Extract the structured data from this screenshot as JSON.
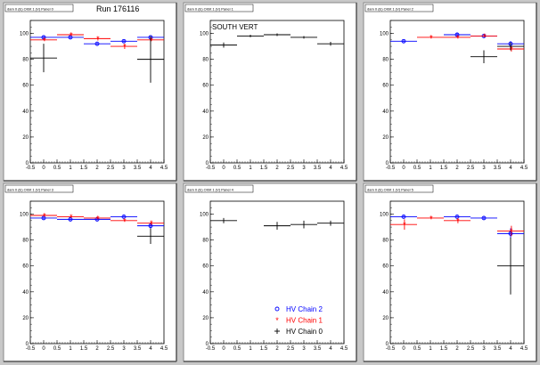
{
  "run_label": "Run 176116",
  "colors": {
    "chain2": "#0000ff",
    "chain1": "#ff0000",
    "chain0": "#000000"
  },
  "legend": [
    {
      "label": "HV Chain 2",
      "marker": "open-circle",
      "series": "chain2"
    },
    {
      "label": "HV Chain 1",
      "marker": "star",
      "series": "chain1"
    },
    {
      "label": "HV Chain 0",
      "marker": "cross",
      "series": "chain0"
    }
  ],
  "chart_data": [
    {
      "type": "scatter",
      "pad_title": "dam 0 (E) Orbit 1 (V) Panel 0",
      "label": "",
      "xlim": [
        -0.5,
        4.5
      ],
      "ylim": [
        0,
        110
      ],
      "xticks": [
        "-0.5",
        "0",
        "0.5",
        "1",
        "1.5",
        "2",
        "2.5",
        "3",
        "3.5",
        "4",
        "4.5"
      ],
      "yticks": [
        "0",
        "20",
        "40",
        "60",
        "80",
        "100"
      ],
      "series": [
        {
          "key": "chain0",
          "points": [
            {
              "x": 0,
              "y": 81,
              "err": 11
            },
            {
              "x": 4,
              "y": 80,
              "err": 18
            }
          ]
        },
        {
          "key": "chain1",
          "points": [
            {
              "x": 0,
              "y": 95,
              "err": 1
            },
            {
              "x": 1,
              "y": 99,
              "err": 1
            },
            {
              "x": 2,
              "y": 96,
              "err": 1.5
            },
            {
              "x": 3,
              "y": 90,
              "err": 2
            },
            {
              "x": 4,
              "y": 95,
              "err": 1
            }
          ]
        },
        {
          "key": "chain2",
          "points": [
            {
              "x": 0,
              "y": 97,
              "err": 1
            },
            {
              "x": 1,
              "y": 97,
              "err": 1
            },
            {
              "x": 2,
              "y": 92,
              "err": 1
            },
            {
              "x": 3,
              "y": 94,
              "err": 1
            },
            {
              "x": 4,
              "y": 97,
              "err": 1
            }
          ]
        }
      ]
    },
    {
      "type": "scatter",
      "pad_title": "dam 0 (E) Orbit 1 (V) Panel 1",
      "label": "SOUTH VERT",
      "xlim": [
        -0.5,
        4.5
      ],
      "ylim": [
        0,
        110
      ],
      "xticks": [
        "-0.5",
        "0",
        "0.5",
        "1",
        "1.5",
        "2",
        "2.5",
        "3",
        "3.5",
        "4",
        "4.5"
      ],
      "yticks": [
        "0",
        "20",
        "40",
        "60",
        "80",
        "100"
      ],
      "series": [
        {
          "key": "chain0",
          "points": [
            {
              "x": 0,
              "y": 91,
              "err": 2
            },
            {
              "x": 1,
              "y": 98,
              "err": 1
            },
            {
              "x": 2,
              "y": 99,
              "err": 1
            },
            {
              "x": 3,
              "y": 97,
              "err": 1
            },
            {
              "x": 4,
              "y": 92,
              "err": 1.5
            }
          ]
        }
      ]
    },
    {
      "type": "scatter",
      "pad_title": "dam 0 (E) Orbit 1 (V) Panel 2",
      "label": "",
      "xlim": [
        -0.5,
        4.5
      ],
      "ylim": [
        0,
        110
      ],
      "xticks": [
        "-0.5",
        "0",
        "0.5",
        "1",
        "1.5",
        "2",
        "2.5",
        "3",
        "3.5",
        "4",
        "4.5"
      ],
      "yticks": [
        "0",
        "20",
        "40",
        "60",
        "80",
        "100"
      ],
      "series": [
        {
          "key": "chain0",
          "points": [
            {
              "x": 3,
              "y": 82,
              "err": 5
            },
            {
              "x": 4,
              "y": 90,
              "err": 3
            }
          ]
        },
        {
          "key": "chain1",
          "points": [
            {
              "x": 1,
              "y": 97,
              "err": 1
            },
            {
              "x": 2,
              "y": 97,
              "err": 1
            },
            {
              "x": 3,
              "y": 98,
              "err": 1
            },
            {
              "x": 4,
              "y": 88,
              "err": 2
            }
          ]
        },
        {
          "key": "chain2",
          "points": [
            {
              "x": 0,
              "y": 94,
              "err": 1
            },
            {
              "x": 2,
              "y": 99,
              "err": 1
            },
            {
              "x": 3,
              "y": 98,
              "err": 1
            },
            {
              "x": 4,
              "y": 92,
              "err": 2
            }
          ]
        }
      ]
    },
    {
      "type": "scatter",
      "pad_title": "dam 0 (E) Orbit 1 (V) Panel 3",
      "label": "",
      "xlim": [
        -0.5,
        4.5
      ],
      "ylim": [
        0,
        110
      ],
      "xticks": [
        "-0.5",
        "0",
        "0.5",
        "1",
        "1.5",
        "2",
        "2.5",
        "3",
        "3.5",
        "4",
        "4.5"
      ],
      "yticks": [
        "0",
        "20",
        "40",
        "60",
        "80",
        "100"
      ],
      "series": [
        {
          "key": "chain0",
          "points": [
            {
              "x": 4,
              "y": 83,
              "err": 6
            }
          ]
        },
        {
          "key": "chain1",
          "points": [
            {
              "x": 0,
              "y": 99,
              "err": 1
            },
            {
              "x": 1,
              "y": 98,
              "err": 1
            },
            {
              "x": 2,
              "y": 97,
              "err": 1
            },
            {
              "x": 3,
              "y": 95,
              "err": 1
            },
            {
              "x": 4,
              "y": 93,
              "err": 1.5
            }
          ]
        },
        {
          "key": "chain2",
          "points": [
            {
              "x": 0,
              "y": 97,
              "err": 1
            },
            {
              "x": 1,
              "y": 96,
              "err": 1
            },
            {
              "x": 2,
              "y": 96,
              "err": 1
            },
            {
              "x": 3,
              "y": 98,
              "err": 1
            },
            {
              "x": 4,
              "y": 91,
              "err": 2
            }
          ]
        }
      ]
    },
    {
      "type": "scatter",
      "pad_title": "dam 0 (E) Orbit 1 (V) Panel 4",
      "label": "",
      "xlim": [
        -0.5,
        4.5
      ],
      "ylim": [
        0,
        110
      ],
      "xticks": [
        "-0.5",
        "0",
        "0.5",
        "1",
        "1.5",
        "2",
        "2.5",
        "3",
        "3.5",
        "4",
        "4.5"
      ],
      "yticks": [
        "0",
        "20",
        "40",
        "60",
        "80",
        "100"
      ],
      "series": [
        {
          "key": "chain0",
          "points": [
            {
              "x": 0,
              "y": 95,
              "err": 2
            },
            {
              "x": 2,
              "y": 91,
              "err": 3
            },
            {
              "x": 3,
              "y": 92,
              "err": 3
            },
            {
              "x": 4,
              "y": 93,
              "err": 2
            }
          ]
        }
      ]
    },
    {
      "type": "scatter",
      "pad_title": "dam 0 (E) Orbit 1 (V) Panel 5",
      "label": "",
      "xlim": [
        -0.5,
        4.5
      ],
      "ylim": [
        0,
        110
      ],
      "xticks": [
        "-0.5",
        "0",
        "0.5",
        "1",
        "1.5",
        "2",
        "2.5",
        "3",
        "3.5",
        "4",
        "4.5"
      ],
      "yticks": [
        "0",
        "20",
        "40",
        "60",
        "80",
        "100"
      ],
      "series": [
        {
          "key": "chain0",
          "points": [
            {
              "x": 4,
              "y": 60,
              "err": 22
            }
          ]
        },
        {
          "key": "chain1",
          "points": [
            {
              "x": 0,
              "y": 92,
              "err": 4
            },
            {
              "x": 1,
              "y": 97,
              "err": 1
            },
            {
              "x": 2,
              "y": 95,
              "err": 2
            },
            {
              "x": 4,
              "y": 87,
              "err": 4
            }
          ]
        },
        {
          "key": "chain2",
          "points": [
            {
              "x": 0,
              "y": 98,
              "err": 1
            },
            {
              "x": 2,
              "y": 98,
              "err": 1
            },
            {
              "x": 3,
              "y": 97,
              "err": 1
            },
            {
              "x": 4,
              "y": 85,
              "err": 4
            }
          ]
        }
      ]
    }
  ]
}
